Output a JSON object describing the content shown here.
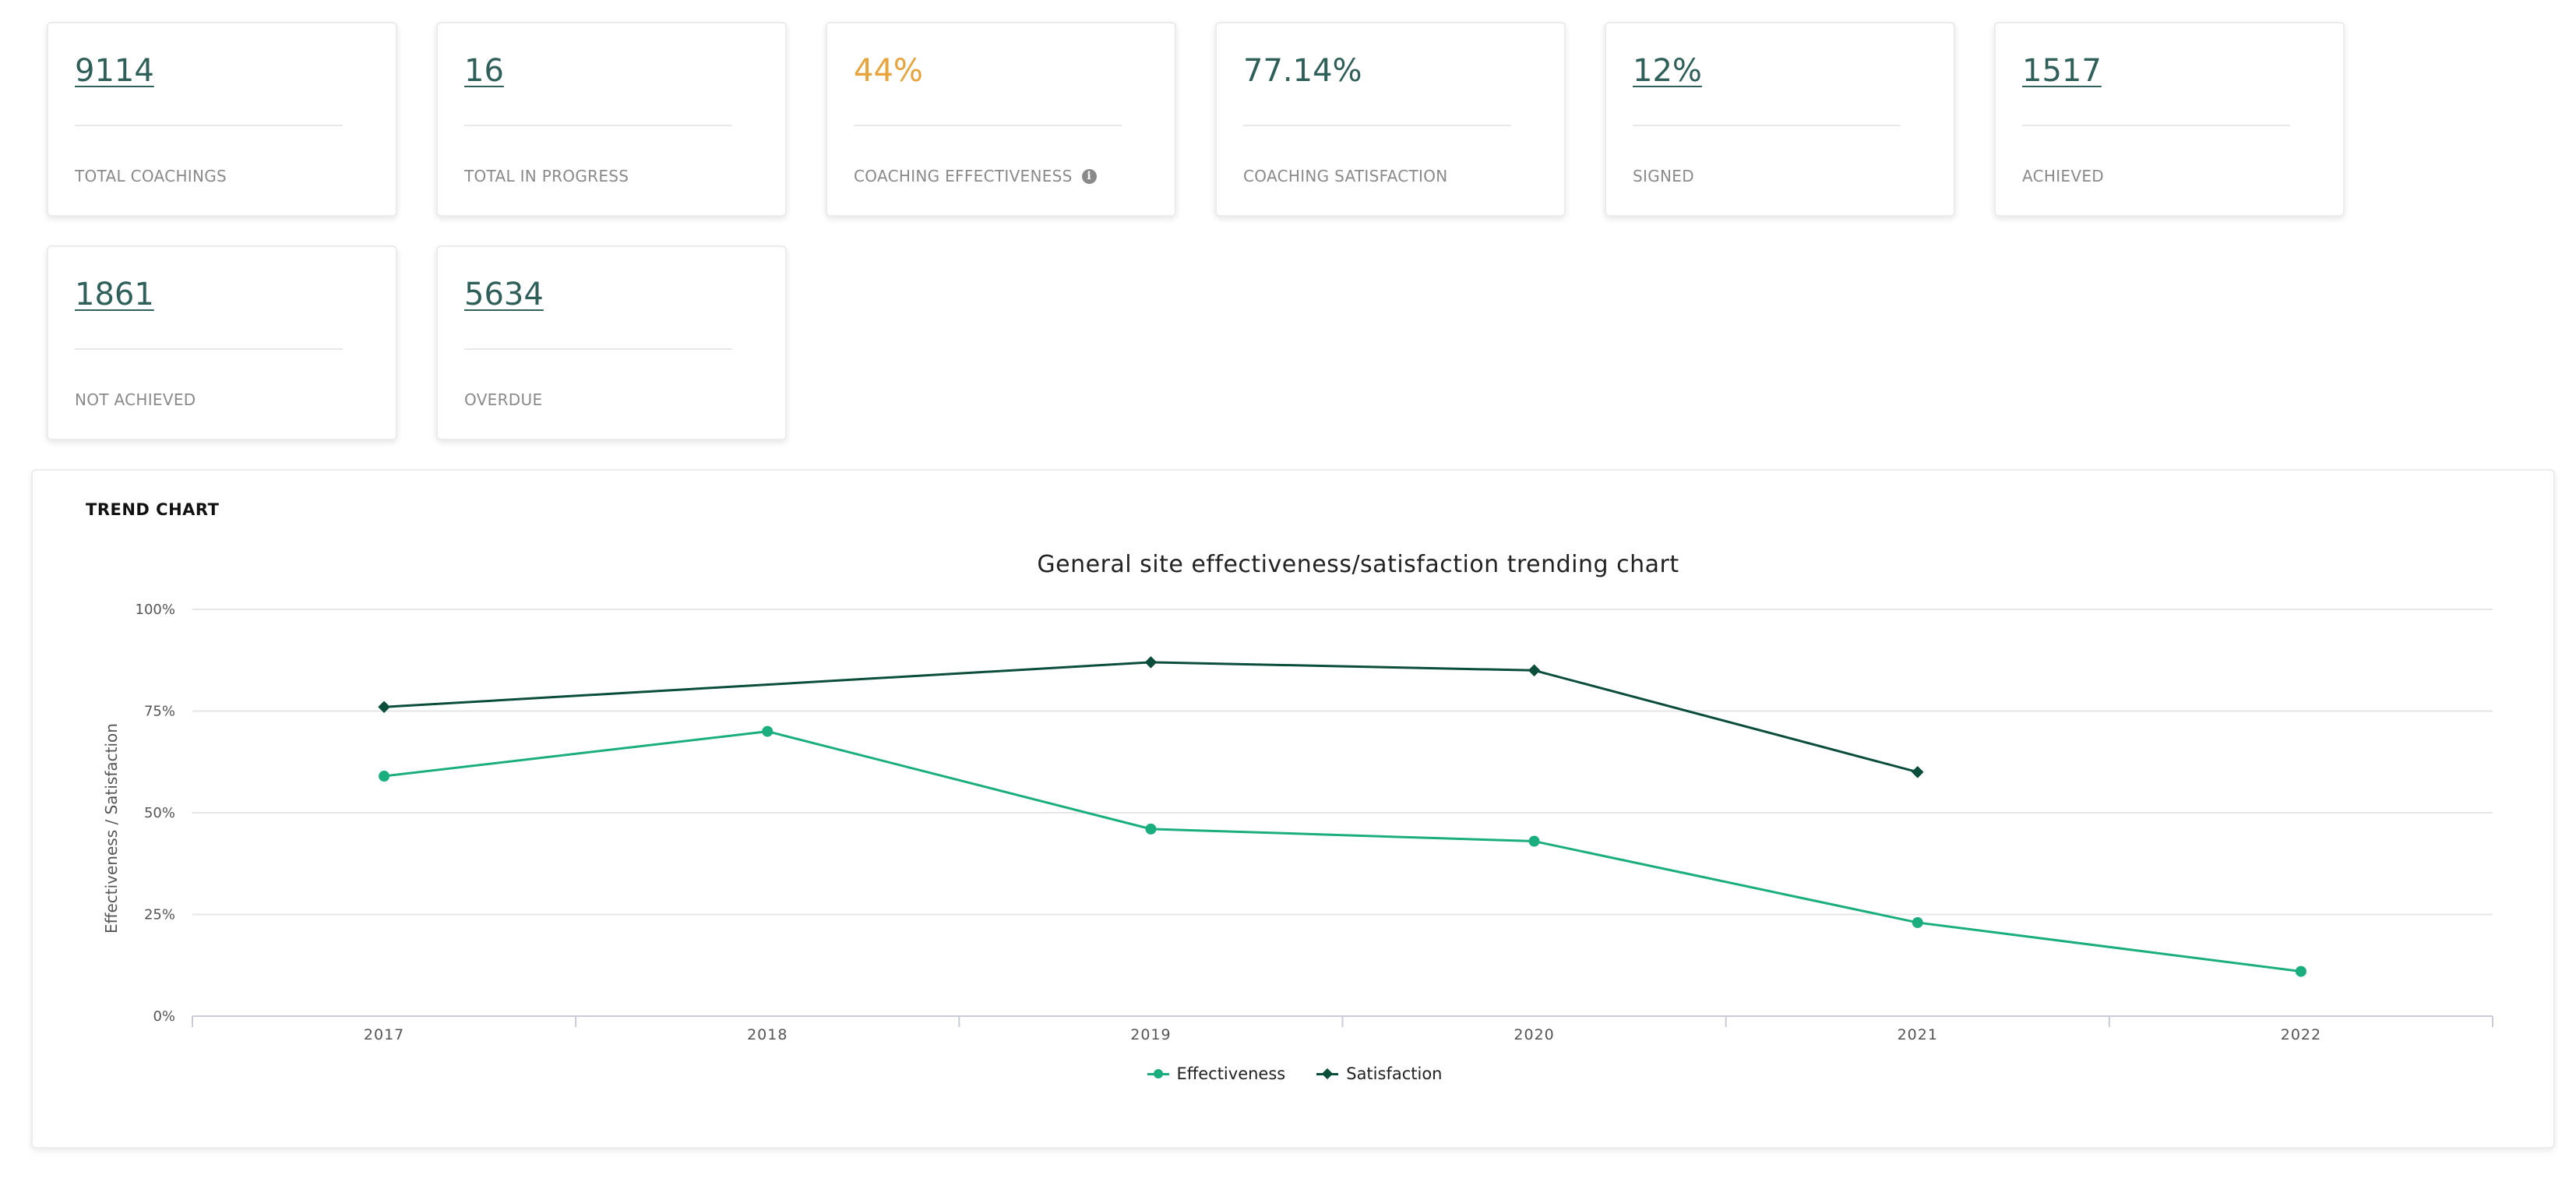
{
  "stats": [
    {
      "value": "9114",
      "label": "TOTAL COACHINGS"
    },
    {
      "value": "16",
      "label": "TOTAL IN PROGRESS"
    },
    {
      "value": "44%",
      "label": "COACHING EFFECTIVENESS"
    },
    {
      "value": "77.14%",
      "label": "COACHING SATISFACTION"
    },
    {
      "value": "12%",
      "label": "SIGNED"
    },
    {
      "value": "1517",
      "label": "ACHIEVED"
    },
    {
      "value": "1861",
      "label": "NOT ACHIEVED"
    },
    {
      "value": "5634",
      "label": "OVERDUE"
    }
  ],
  "colors": {
    "effectiveness": "#1aae7e",
    "satisfaction": "#0b4d3b",
    "accent_orange": "#e8a33b",
    "link_teal": "#2f5f59"
  },
  "trend": {
    "heading": "TREND CHART"
  },
  "chart_data": {
    "type": "line",
    "title": "General site effectiveness/satisfaction trending chart",
    "xlabel": "",
    "ylabel": "Effectiveness / Satisfaction",
    "categories": [
      "2017",
      "2018",
      "2019",
      "2020",
      "2021",
      "2022"
    ],
    "yticks": [
      "0%",
      "25%",
      "50%",
      "75%",
      "100%"
    ],
    "ylim": [
      0,
      100
    ],
    "grid": true,
    "legend_position": "bottom-center",
    "series": [
      {
        "name": "Effectiveness",
        "marker": "circle",
        "values": [
          59,
          70,
          46,
          43,
          23,
          11
        ]
      },
      {
        "name": "Satisfaction",
        "marker": "diamond",
        "values": [
          76,
          null,
          87,
          85,
          60,
          null
        ]
      }
    ]
  }
}
